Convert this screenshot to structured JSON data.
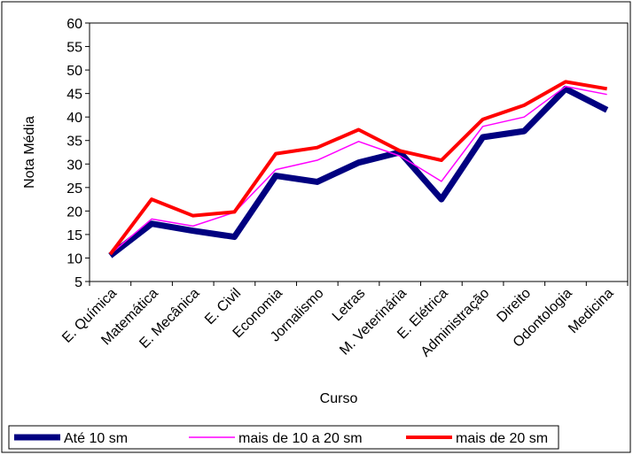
{
  "chart_data": {
    "type": "line",
    "x_label": "Curso",
    "y_label": "Nota Média",
    "categories": [
      "E. Química",
      "Matemática",
      "E. Mecânica",
      "E. Civil",
      "Economia",
      "Jornalismo",
      "Letras",
      "M. Veterinária",
      "E. Elétrica",
      "Administração",
      "Direito",
      "Odontologia",
      "Medicina"
    ],
    "series": [
      {
        "name": "Até 10 sm",
        "color": "#000080",
        "values": [
          10.5,
          17.3,
          15.8,
          14.5,
          27.5,
          26.2,
          30.3,
          32.5,
          22.5,
          35.7,
          37,
          46,
          41.5
        ]
      },
      {
        "name": "mais de 10 a 20 sm",
        "color": "#ff00ff",
        "values": [
          10.8,
          18.3,
          16.8,
          19.7,
          28.8,
          30.8,
          34.8,
          31.7,
          26.3,
          38,
          40,
          46.5,
          44.8
        ]
      },
      {
        "name": "mais de 20 sm",
        "color": "#ff0000",
        "values": [
          10.8,
          22.5,
          19,
          19.8,
          32.2,
          33.5,
          37.3,
          32.8,
          30.8,
          39.5,
          42.5,
          47.5,
          46
        ]
      }
    ],
    "ylim": [
      5,
      60
    ],
    "yticks": [
      5,
      10,
      15,
      20,
      25,
      30,
      35,
      40,
      45,
      50,
      55,
      60
    ],
    "legend": "bottom"
  }
}
